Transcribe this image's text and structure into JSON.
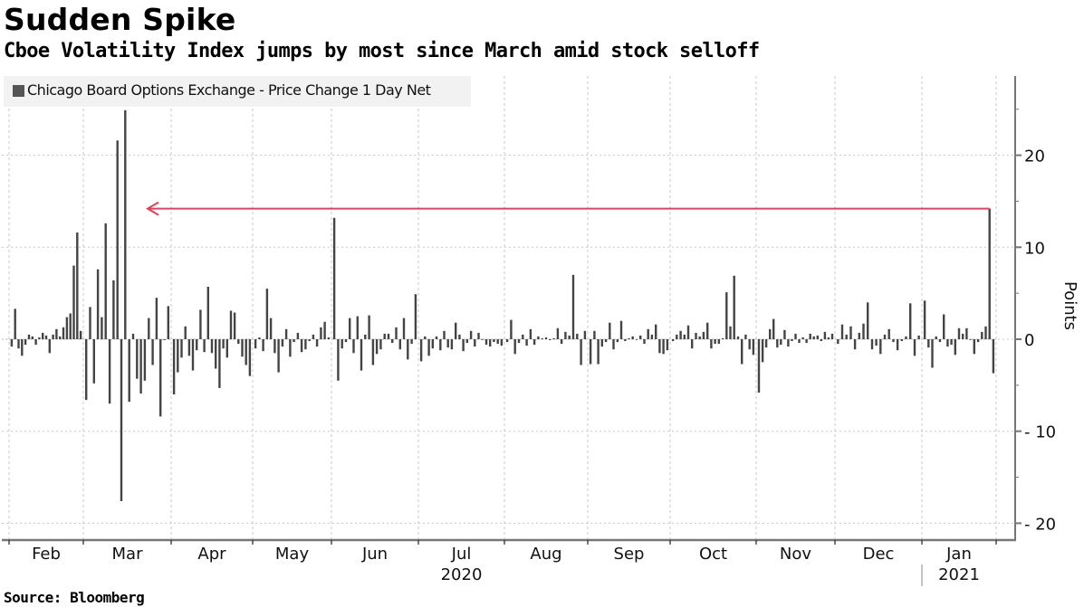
{
  "header": {
    "title": "Sudden Spike",
    "subtitle": "Cboe Volatility Index jumps by most since March amid stock selloff"
  },
  "footer": {
    "source": "Source: Bloomberg"
  },
  "colors": {
    "bar": "#444444",
    "arrow": "#e8405a",
    "grid": "#c8c8c8",
    "axis": "#777777",
    "legend_bg": "#f2f2f2"
  },
  "chart_data": {
    "type": "bar",
    "title": "Sudden Spike",
    "subtitle": "Cboe Volatility Index jumps by most since March amid stock selloff",
    "legend": [
      {
        "name": "Chicago Board Options Exchange - Price Change 1 Day Net",
        "color": "#555555"
      }
    ],
    "legend_placement": "top-left",
    "xlabel": "",
    "ylabel": "Points",
    "ylim": [
      -21,
      29
    ],
    "yticks": [
      -20,
      -10,
      0,
      10,
      20
    ],
    "ytick_labels": [
      "-20",
      "-10",
      "0",
      "10",
      "20"
    ],
    "grid": true,
    "x_axis": {
      "months": [
        "Feb",
        "Mar",
        "Apr",
        "May",
        "Jun",
        "Jul",
        "Aug",
        "Sep",
        "Oct",
        "Nov",
        "Dec",
        "Jan"
      ],
      "year_labels": [
        {
          "label": "2020",
          "under": "Jul"
        },
        {
          "label": "2021",
          "under": "Jan"
        }
      ],
      "range": "2020-01-31 to 2021-01-28"
    },
    "annotation": {
      "type": "arrow",
      "from_value": 14.2,
      "direction": "left",
      "points_to": "March 2020",
      "description": "Latest jump compared back to March"
    },
    "series": [
      {
        "name": "Chicago Board Options Exchange - Price Change 1 Day Net",
        "month_values": {
          "Feb": [
            -0.8,
            3.3,
            -1.0,
            -1.8,
            -0.6,
            0.5,
            0.3,
            -0.6,
            0.2,
            0.7,
            0.4,
            -1.5,
            0.5,
            1.1,
            0.3,
            1.3,
            2.4,
            2.8,
            8.0,
            11.6,
            0.9
          ],
          "Mar": [
            -6.6,
            3.5,
            -4.8,
            7.6,
            2.4,
            12.6,
            -7.0,
            6.4,
            21.6,
            -17.6,
            24.9,
            -6.8,
            0.6,
            -4.3,
            -5.9,
            -4.5,
            2.3,
            -2.8,
            4.5,
            -8.4,
            -0.1,
            3.6
          ],
          "Apr": [
            -6.0,
            -3.6,
            -2.0,
            1.4,
            -1.8,
            -3.4,
            -1.2,
            3.2,
            -1.4,
            5.7,
            -1.5,
            -3.2,
            -5.3,
            -1.0,
            -2.0,
            3.1,
            2.9,
            -0.5,
            -1.9,
            -2.8,
            -4.0
          ],
          "May": [
            -1.0,
            0.2,
            -1.3,
            5.5,
            2.3,
            -1.5,
            -3.6,
            -0.8,
            1.1,
            -1.9,
            -0.3,
            0.7,
            -1.4,
            -1.1,
            -0.2,
            0.5,
            -0.8,
            1.3,
            1.9,
            0.2
          ],
          "Jun": [
            13.2,
            -4.5,
            -1.0,
            -0.3,
            2.3,
            -1.5,
            2.5,
            -3.4,
            0.5,
            2.6,
            -2.8,
            -1.6,
            -1.1,
            0.6,
            0.6,
            -0.4,
            1.3,
            -1.1,
            2.3,
            -2.2,
            -0.5,
            4.9
          ],
          "Jul": [
            -2.4,
            0.3,
            -1.8,
            -1.0,
            0.3,
            -1.2,
            0.9,
            -0.9,
            -1.1,
            1.8,
            0.5,
            -1.3,
            -0.4,
            0.9,
            -0.8,
            0.7,
            0.0,
            -0.6,
            -0.8,
            -0.3,
            -0.5,
            -0.7
          ],
          "Aug": [
            -0.3,
            2.1,
            -1.6,
            -0.4,
            0.5,
            -0.7,
            1.1,
            -0.6,
            0.3,
            0.1,
            0.2,
            -0.1,
            0.1,
            1.2,
            -0.5,
            0.8,
            0.4,
            7.0,
            0.6,
            -2.8,
            0.9
          ],
          "Sep": [
            -2.7,
            0.9,
            -2.7,
            -0.8,
            -0.3,
            1.8,
            -1.1,
            -0.3,
            2.0,
            -0.2,
            0.1,
            0.3,
            0.0,
            0.4,
            -0.5,
            1.1,
            0.5,
            1.6,
            -1.5,
            -1.6,
            -1.2
          ],
          "Oct": [
            -0.2,
            0.5,
            0.9,
            0.5,
            1.5,
            -1.0,
            0.7,
            0.3,
            0.8,
            1.8,
            -1.0,
            -0.5,
            -0.5,
            0.1,
            5.1,
            1.4,
            6.9,
            0.3,
            -2.7,
            0.5,
            -1.1,
            -1.7
          ],
          "Nov": [
            -5.8,
            -2.5,
            -0.9,
            1.1,
            2.2,
            -0.9,
            -0.6,
            1.0,
            -0.8,
            -0.2,
            0.6,
            -0.4,
            0.2,
            -0.4,
            0.6,
            0.3,
            0.4,
            -0.2,
            0.8,
            0.2,
            0.6
          ],
          "Dec": [
            -0.5,
            1.6,
            0.5,
            1.4,
            -1.1,
            0.7,
            1.7,
            4.0,
            -1.1,
            -0.7,
            -1.6,
            0.5,
            1.1,
            -0.3,
            -1.2,
            -0.2,
            0.3,
            3.9,
            -1.8,
            0.4
          ],
          "Jan": [
            4.2,
            -0.9,
            -3.1,
            0.3,
            -0.3,
            2.7,
            -0.8,
            -0.6,
            -1.7,
            1.2,
            0.6,
            1.2,
            0.0,
            -1.6,
            -0.3,
            0.8,
            1.4,
            14.2,
            -3.7
          ]
        }
      }
    ]
  }
}
